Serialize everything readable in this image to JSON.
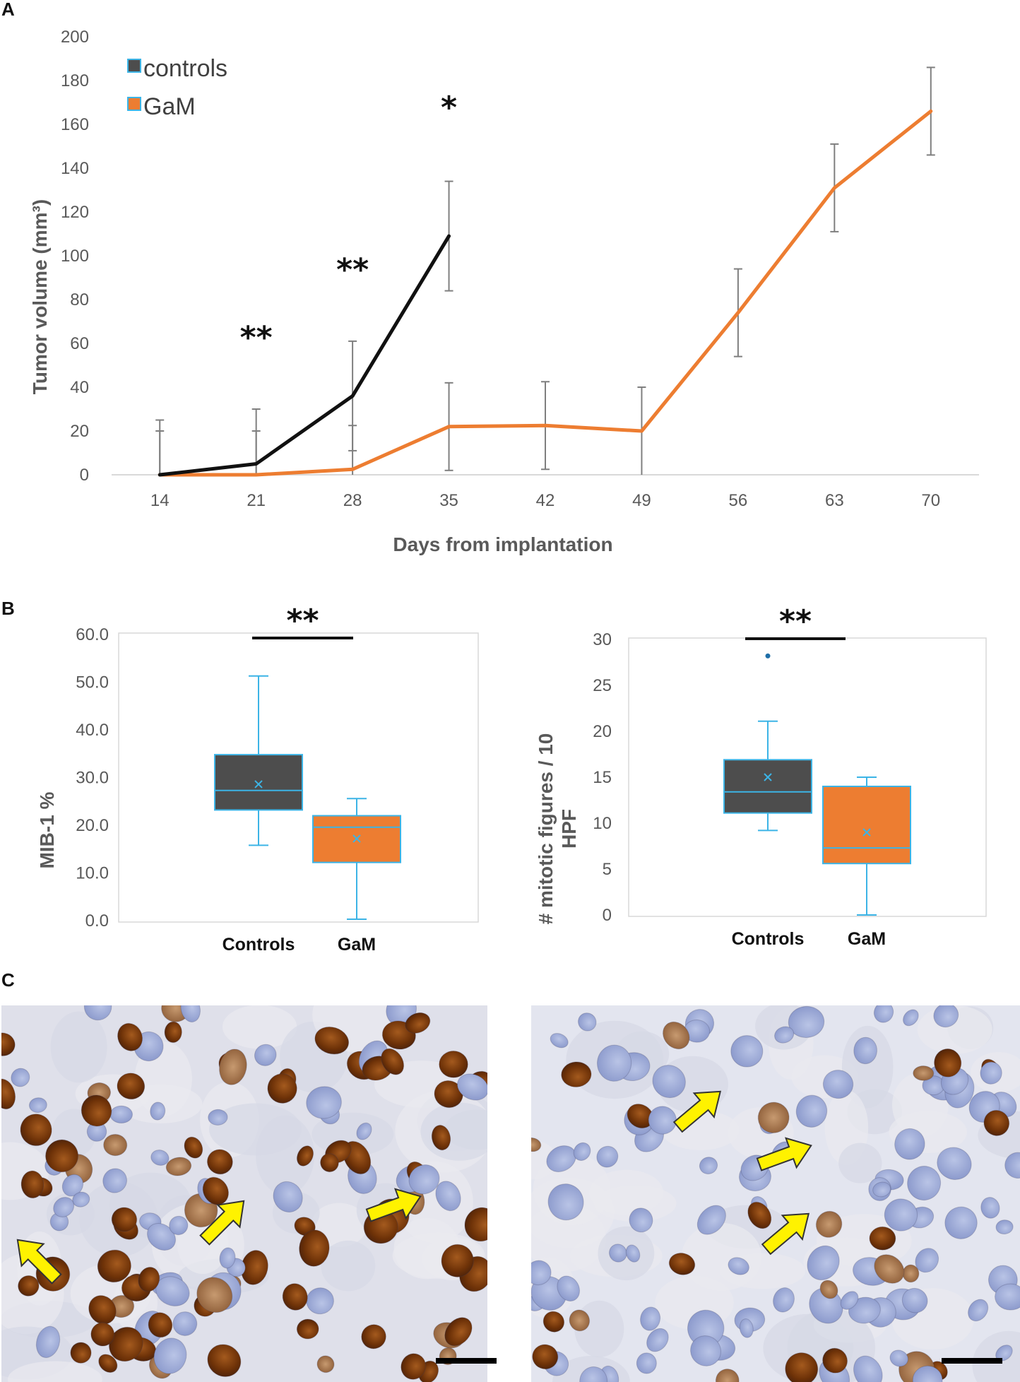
{
  "panels": {
    "a": "A",
    "b": "B",
    "c": "C"
  },
  "colors": {
    "controls": "#111111",
    "gam": "#ED7D31",
    "box_dark": "#4D4D4D",
    "box_line": "#3CB4E6",
    "grid": "#D9D9D9"
  },
  "chart_data": [
    {
      "type": "line",
      "id": "tumor-volume",
      "xlabel": "Days from implantation",
      "ylabel": "Tumor volume (mm³)",
      "ylim": [
        0,
        200
      ],
      "yticks": [
        0,
        20,
        40,
        60,
        80,
        100,
        120,
        140,
        160,
        180,
        200
      ],
      "categories": [
        "14",
        "21",
        "28",
        "35",
        "42",
        "49",
        "56",
        "63",
        "70"
      ],
      "legend": {
        "position": "top-left",
        "entries": [
          "controls",
          "GaM"
        ]
      },
      "series": [
        {
          "name": "controls",
          "color": "#111111",
          "values": [
            0,
            5,
            36,
            109,
            null,
            null,
            null,
            null,
            null
          ],
          "errors": [
            25,
            25,
            25,
            25,
            null,
            null,
            null,
            null,
            null
          ]
        },
        {
          "name": "GaM",
          "color": "#ED7D31",
          "values": [
            0,
            0,
            2.5,
            22,
            22.5,
            20,
            74,
            131,
            166
          ],
          "errors": [
            20,
            20,
            20,
            20,
            20,
            20,
            20,
            20,
            20
          ]
        }
      ],
      "annotations": [
        {
          "text": "**",
          "x": "21",
          "y": 63
        },
        {
          "text": "**",
          "x": "28",
          "y": 94
        },
        {
          "text": "*",
          "x": "35",
          "y": 168
        }
      ]
    },
    {
      "type": "box",
      "id": "mib1",
      "ylabel": "MIB-1 %",
      "ylim": [
        0,
        60
      ],
      "yticks": [
        "0.0",
        "10.0",
        "20.0",
        "30.0",
        "40.0",
        "50.0",
        "60.0"
      ],
      "significance": "**",
      "boxes": [
        {
          "name": "Controls",
          "min": 15.8,
          "q1": 23.2,
          "median": 27.3,
          "q3": 34.8,
          "max": 51.3,
          "mean": 28.6,
          "color": "#4D4D4D"
        },
        {
          "name": "GaM",
          "min": 0.3,
          "q1": 12.2,
          "median": 19.6,
          "q3": 22.0,
          "max": 25.6,
          "mean": 17.2,
          "color": "#ED7D31"
        }
      ]
    },
    {
      "type": "box",
      "id": "mitotic",
      "ylabel": "# mitotic figures / 10 HPF",
      "ylabel_lines": [
        "# mitotic figures / 10",
        "HPF"
      ],
      "ylim": [
        0,
        30
      ],
      "yticks": [
        "0",
        "5",
        "10",
        "15",
        "20",
        "25",
        "30"
      ],
      "significance": "**",
      "boxes": [
        {
          "name": "Controls",
          "min": 9.2,
          "q1": 11.1,
          "median": 13.4,
          "q3": 16.9,
          "max": 21.1,
          "mean": 15.0,
          "outliers": [
            28.2
          ],
          "color": "#4D4D4D"
        },
        {
          "name": "GaM",
          "min": 0,
          "q1": 5.6,
          "median": 7.3,
          "q3": 14.0,
          "max": 15.0,
          "mean": 9.0,
          "color": "#ED7D31"
        }
      ]
    }
  ]
}
